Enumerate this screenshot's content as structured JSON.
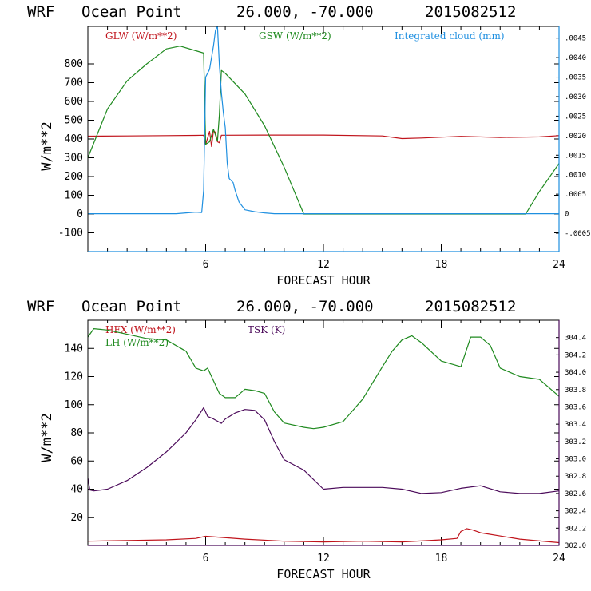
{
  "colors": {
    "glw": "#c0141c",
    "gsw": "#1f8a1f",
    "cloud": "#1e8fe0",
    "hfx": "#c0141c",
    "lh": "#1f8a1f",
    "tsk": "#4b0a5a"
  },
  "chart_data": [
    {
      "type": "line",
      "header": {
        "model": "WRF",
        "location": "Ocean Point",
        "coords": "26.000, -70.000",
        "date": "2015082512"
      },
      "xlabel": "FORECAST HOUR",
      "ylabel": "W/m**2",
      "xlim": [
        0,
        24
      ],
      "ylim": [
        -200,
        1000
      ],
      "x_ticks": [
        "6",
        "12",
        "18",
        "24"
      ],
      "y_ticks": [
        "-100",
        "0",
        "100",
        "200",
        "300",
        "400",
        "500",
        "600",
        "700",
        "800"
      ],
      "y2lim": [
        -0.00097,
        0.0048
      ],
      "y2_ticks": [
        "-.0005",
        "0",
        ".0005",
        ".0010",
        ".0015",
        ".0020",
        ".0025",
        ".0030",
        ".0035",
        ".0040",
        ".0045"
      ],
      "legend": [
        "GLW (W/m**2)",
        "GSW (W/m**2)",
        "Integrated cloud (mm)"
      ],
      "series": [
        {
          "name": "GLW (W/m**2)",
          "axis": "left",
          "x": [
            0,
            2,
            4,
            5.5,
            5.9,
            6.0,
            6.2,
            6.3,
            6.4,
            6.5,
            6.6,
            6.7,
            6.8,
            7.0,
            9,
            12,
            15,
            16,
            17,
            19,
            21,
            23,
            24
          ],
          "y": [
            415,
            416,
            418,
            419,
            420,
            370,
            440,
            360,
            445,
            435,
            385,
            380,
            420,
            420,
            421,
            421,
            416,
            402,
            405,
            414,
            408,
            411,
            418
          ]
        },
        {
          "name": "GSW (W/m**2)",
          "axis": "left",
          "x": [
            0,
            1,
            2,
            3,
            4,
            4.7,
            5.5,
            5.9,
            6.0,
            6.2,
            6.4,
            6.6,
            6.7,
            6.8,
            7.0,
            8,
            9,
            10,
            11,
            22.3,
            23,
            24
          ],
          "y": [
            300,
            560,
            710,
            800,
            880,
            895,
            870,
            858,
            372,
            385,
            452,
            389,
            530,
            765,
            750,
            640,
            470,
            250,
            0,
            0,
            120,
            270
          ]
        },
        {
          "name": "Integrated cloud (mm)",
          "axis": "right",
          "x": [
            0,
            4.5,
            5,
            5.5,
            5.8,
            5.9,
            6.0,
            6.2,
            6.4,
            6.5,
            6.6,
            6.7,
            6.8,
            6.9,
            7.0,
            7.1,
            7.2,
            7.4,
            7.5,
            7.7,
            8.0,
            8.5,
            9.0,
            9.5,
            24
          ],
          "y": [
            0,
            0,
            2e-05,
            4e-05,
            3e-05,
            0.0006,
            0.0035,
            0.0037,
            0.0043,
            0.0047,
            0.0048,
            0.0038,
            0.0031,
            0.0026,
            0.0022,
            0.0013,
            0.0009,
            0.0008,
            0.0006,
            0.0003,
            0.0001,
            5e-05,
            2e-05,
            0,
            0
          ]
        }
      ]
    },
    {
      "type": "line",
      "header": {
        "model": "WRF",
        "location": "Ocean Point",
        "coords": "26.000, -70.000",
        "date": "2015082512"
      },
      "xlabel": "FORECAST HOUR",
      "ylabel": "W/m**2",
      "xlim": [
        0,
        24
      ],
      "ylim": [
        0,
        160
      ],
      "x_ticks": [
        "6",
        "12",
        "18",
        "24"
      ],
      "y_ticks": [
        "20",
        "40",
        "60",
        "80",
        "100",
        "120",
        "140"
      ],
      "y2lim": [
        302.0,
        304.6
      ],
      "y2_ticks": [
        "302.0",
        "302.2",
        "302.4",
        "302.6",
        "302.8",
        "303.0",
        "303.2",
        "303.4",
        "303.6",
        "303.8",
        "304.0",
        "304.2",
        "304.4"
      ],
      "legend": [
        "HFX (W/m**2)",
        "LH (W/m**2)",
        "TSK (K)"
      ],
      "series": [
        {
          "name": "HFX (W/m**2)",
          "axis": "left",
          "x": [
            0,
            2,
            4,
            5.5,
            6,
            6.5,
            8,
            10,
            12,
            14,
            16,
            18,
            18.8,
            19,
            19.3,
            19.6,
            20,
            22,
            24
          ],
          "y": [
            3,
            3.5,
            4,
            5,
            6.5,
            6,
            4.5,
            3,
            2.5,
            3,
            2.5,
            4,
            5,
            10,
            12,
            11,
            9,
            4.5,
            2
          ]
        },
        {
          "name": "LH (W/m**2)",
          "axis": "left",
          "x": [
            0,
            0.3,
            1,
            2,
            3,
            4,
            5,
            5.5,
            5.9,
            6.1,
            6.3,
            6.7,
            7,
            7.5,
            8,
            8.5,
            9,
            9.5,
            10,
            11,
            11.5,
            12,
            13,
            14,
            15,
            15.5,
            16,
            16.5,
            17,
            18,
            19,
            19.5,
            20,
            20.5,
            21,
            22,
            23,
            24
          ],
          "y": [
            148,
            154,
            153,
            150,
            147,
            146,
            138,
            126,
            124,
            126,
            120,
            108,
            105,
            105,
            111,
            110,
            108,
            95,
            87,
            84,
            83,
            84,
            88,
            104,
            127,
            138,
            146,
            149,
            144,
            131,
            127,
            148,
            148,
            142,
            126,
            120,
            118,
            106
          ]
        },
        {
          "name": "TSK (K)",
          "axis": "right",
          "x": [
            0,
            0.1,
            0.3,
            1,
            2,
            3,
            4,
            5,
            5.5,
            5.9,
            6.1,
            6.4,
            6.8,
            7,
            7.5,
            8,
            8.5,
            9,
            9.5,
            10,
            11,
            12,
            13,
            14,
            15,
            16,
            17,
            18,
            19,
            20,
            21,
            22,
            23,
            24
          ],
          "y": [
            302.78,
            302.64,
            302.63,
            302.65,
            302.75,
            302.9,
            303.08,
            303.3,
            303.45,
            303.59,
            303.49,
            303.46,
            303.41,
            303.46,
            303.53,
            303.57,
            303.56,
            303.45,
            303.2,
            302.99,
            302.87,
            302.65,
            302.67,
            302.67,
            302.67,
            302.65,
            302.6,
            302.61,
            302.66,
            302.69,
            302.62,
            302.6,
            302.6,
            302.63
          ]
        }
      ]
    }
  ]
}
